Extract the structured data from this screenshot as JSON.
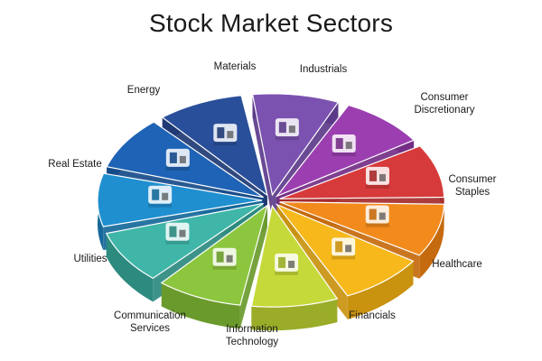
{
  "title": "Stock Market Sectors",
  "sectors": [
    {
      "key": "materials",
      "lines": [
        "Materials"
      ],
      "top": "#7b52b0",
      "side": "#5c3b8a",
      "icon": "rocks-gold-icon"
    },
    {
      "key": "industrials",
      "lines": [
        "Industrials"
      ],
      "top": "#9b3fb0",
      "side": "#742f85",
      "icon": "factory-icon"
    },
    {
      "key": "consumer_discretionary",
      "lines": [
        "Consumer",
        "Discretionary"
      ],
      "top": "#d63a3a",
      "side": "#a62b2b",
      "icon": "building-shop-icon"
    },
    {
      "key": "consumer_staples",
      "lines": [
        "Consumer",
        "Staples"
      ],
      "top": "#f28a1c",
      "side": "#c56a0e",
      "icon": "groceries-icon"
    },
    {
      "key": "healthcare",
      "lines": [
        "Healthcare"
      ],
      "top": "#f6b81b",
      "side": "#c9920f",
      "icon": "health-heart-icon"
    },
    {
      "key": "financials",
      "lines": [
        "Financials"
      ],
      "top": "#c6d93a",
      "side": "#9aac28",
      "icon": "money-shield-icon"
    },
    {
      "key": "information_technology",
      "lines": [
        "Information",
        "Technology"
      ],
      "top": "#8cc63e",
      "side": "#6a9a2c",
      "icon": "server-laptop-icon"
    },
    {
      "key": "communication_services",
      "lines": [
        "Communication",
        "Services"
      ],
      "top": "#3fb6a8",
      "side": "#2c8a7f",
      "icon": "phone-video-icon"
    },
    {
      "key": "utilities",
      "lines": [
        "Utilities"
      ],
      "top": "#1f8fd0",
      "side": "#16699a",
      "icon": "solar-bulb-icon"
    },
    {
      "key": "real_estate",
      "lines": [
        "Real Estate"
      ],
      "top": "#1e63b5",
      "side": "#174b89",
      "icon": "houses-icon"
    },
    {
      "key": "energy",
      "lines": [
        "Energy"
      ],
      "top": "#2a4f9a",
      "side": "#1e3a73",
      "icon": "fuel-barrel-icon"
    }
  ]
}
